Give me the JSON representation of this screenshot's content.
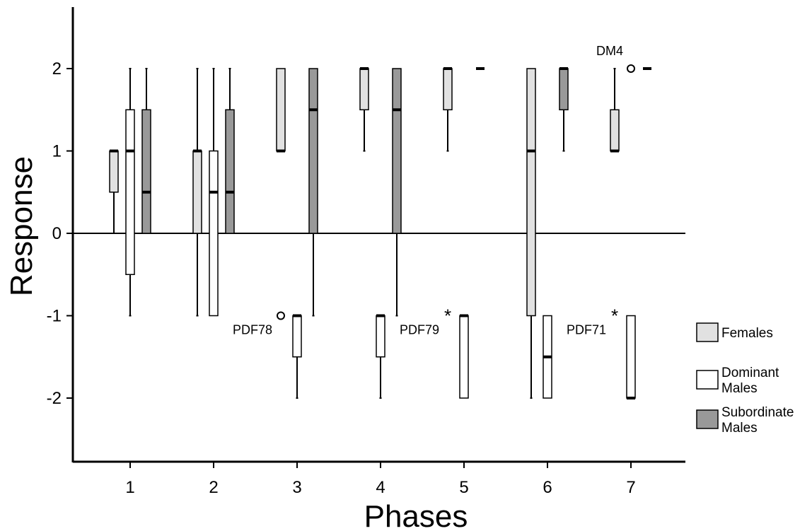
{
  "chart_data": {
    "type": "boxplot",
    "xlabel": "Phases",
    "ylabel": "Response",
    "categories": [
      "1",
      "2",
      "3",
      "4",
      "5",
      "6",
      "7"
    ],
    "ylim": [
      -2.8,
      2.8
    ],
    "yticks": [
      "2",
      "1",
      "0",
      "-1",
      "-2"
    ],
    "reference_line": 0,
    "colors": {
      "Females": "#e1e1e1",
      "Dominant Males": "#ffffff",
      "Subordinate Males": "#999999"
    },
    "series": [
      {
        "name": "Females",
        "legend_label": "Females",
        "boxes": [
          {
            "phase": "1",
            "min": 0,
            "q1": 0.5,
            "median": 1,
            "q3": 1,
            "max": 1
          },
          {
            "phase": "2",
            "min": -1,
            "q1": 0,
            "median": 1,
            "q3": 1,
            "max": 2
          },
          {
            "phase": "3",
            "min": 1,
            "q1": 1,
            "median": 1,
            "q3": 2,
            "max": 2
          },
          {
            "phase": "4",
            "min": 1,
            "q1": 1.5,
            "median": 2,
            "q3": 2,
            "max": 2
          },
          {
            "phase": "5",
            "min": 1,
            "q1": 1.5,
            "median": 2,
            "q3": 2,
            "max": 2
          },
          {
            "phase": "6",
            "min": -2,
            "q1": -1,
            "median": 1,
            "q3": 2,
            "max": 2
          },
          {
            "phase": "7",
            "min": 1,
            "q1": 1,
            "median": 1,
            "q3": 1.5,
            "max": 2
          }
        ]
      },
      {
        "name": "Dominant Males",
        "legend_label": [
          "Dominant",
          "Males"
        ],
        "boxes": [
          {
            "phase": "1",
            "min": -1,
            "q1": -0.5,
            "median": 1,
            "q3": 1.5,
            "max": 2
          },
          {
            "phase": "2",
            "min": -1,
            "q1": -1,
            "median": 0.5,
            "q3": 1,
            "max": 2
          },
          {
            "phase": "3",
            "min": -2,
            "q1": -1.5,
            "median": -1,
            "q3": -1,
            "max": -1
          },
          {
            "phase": "4",
            "min": -2,
            "q1": -1.5,
            "median": -1,
            "q3": -1,
            "max": -1
          },
          {
            "phase": "5",
            "min": -2,
            "q1": -2,
            "median": -1,
            "q3": -1,
            "max": -1
          },
          {
            "phase": "6",
            "min": -2,
            "q1": -2,
            "median": -1.5,
            "q3": -1,
            "max": -1
          },
          {
            "phase": "7",
            "min": -2,
            "q1": -2,
            "median": -2,
            "q3": -1,
            "max": -1
          }
        ]
      },
      {
        "name": "Subordinate Males",
        "legend_label": [
          "Subordinate",
          "Males"
        ],
        "boxes": [
          {
            "phase": "1",
            "min": 0,
            "q1": 0,
            "median": 0.5,
            "q3": 1.5,
            "max": 2
          },
          {
            "phase": "2",
            "min": 0,
            "q1": 0,
            "median": 0.5,
            "q3": 1.5,
            "max": 2
          },
          {
            "phase": "3",
            "min": -1,
            "q1": 0,
            "median": 1.5,
            "q3": 2,
            "max": 2
          },
          {
            "phase": "4",
            "min": -1,
            "q1": 0,
            "median": 1.5,
            "q3": 2,
            "max": 2
          },
          {
            "phase": "5",
            "min": 2,
            "q1": 2,
            "median": 2,
            "q3": 2,
            "max": 2
          },
          {
            "phase": "6",
            "min": 1,
            "q1": 1.5,
            "median": 2,
            "q3": 2,
            "max": 2
          },
          {
            "phase": "7",
            "min": 2,
            "q1": 2,
            "median": 2,
            "q3": 2,
            "max": 2
          }
        ]
      }
    ],
    "outliers": [
      {
        "phase": "3",
        "series": "Females",
        "value": -1,
        "marker": "circle",
        "label": "PDF78"
      },
      {
        "phase": "5",
        "series": "Females",
        "value": -1,
        "marker": "star",
        "label": "PDF79"
      },
      {
        "phase": "7",
        "series": "Females",
        "value": -1,
        "marker": "star",
        "label": "PDF71"
      },
      {
        "phase": "7",
        "series": "Dominant Males",
        "value": 2,
        "marker": "circle",
        "label": "DM4"
      }
    ]
  }
}
